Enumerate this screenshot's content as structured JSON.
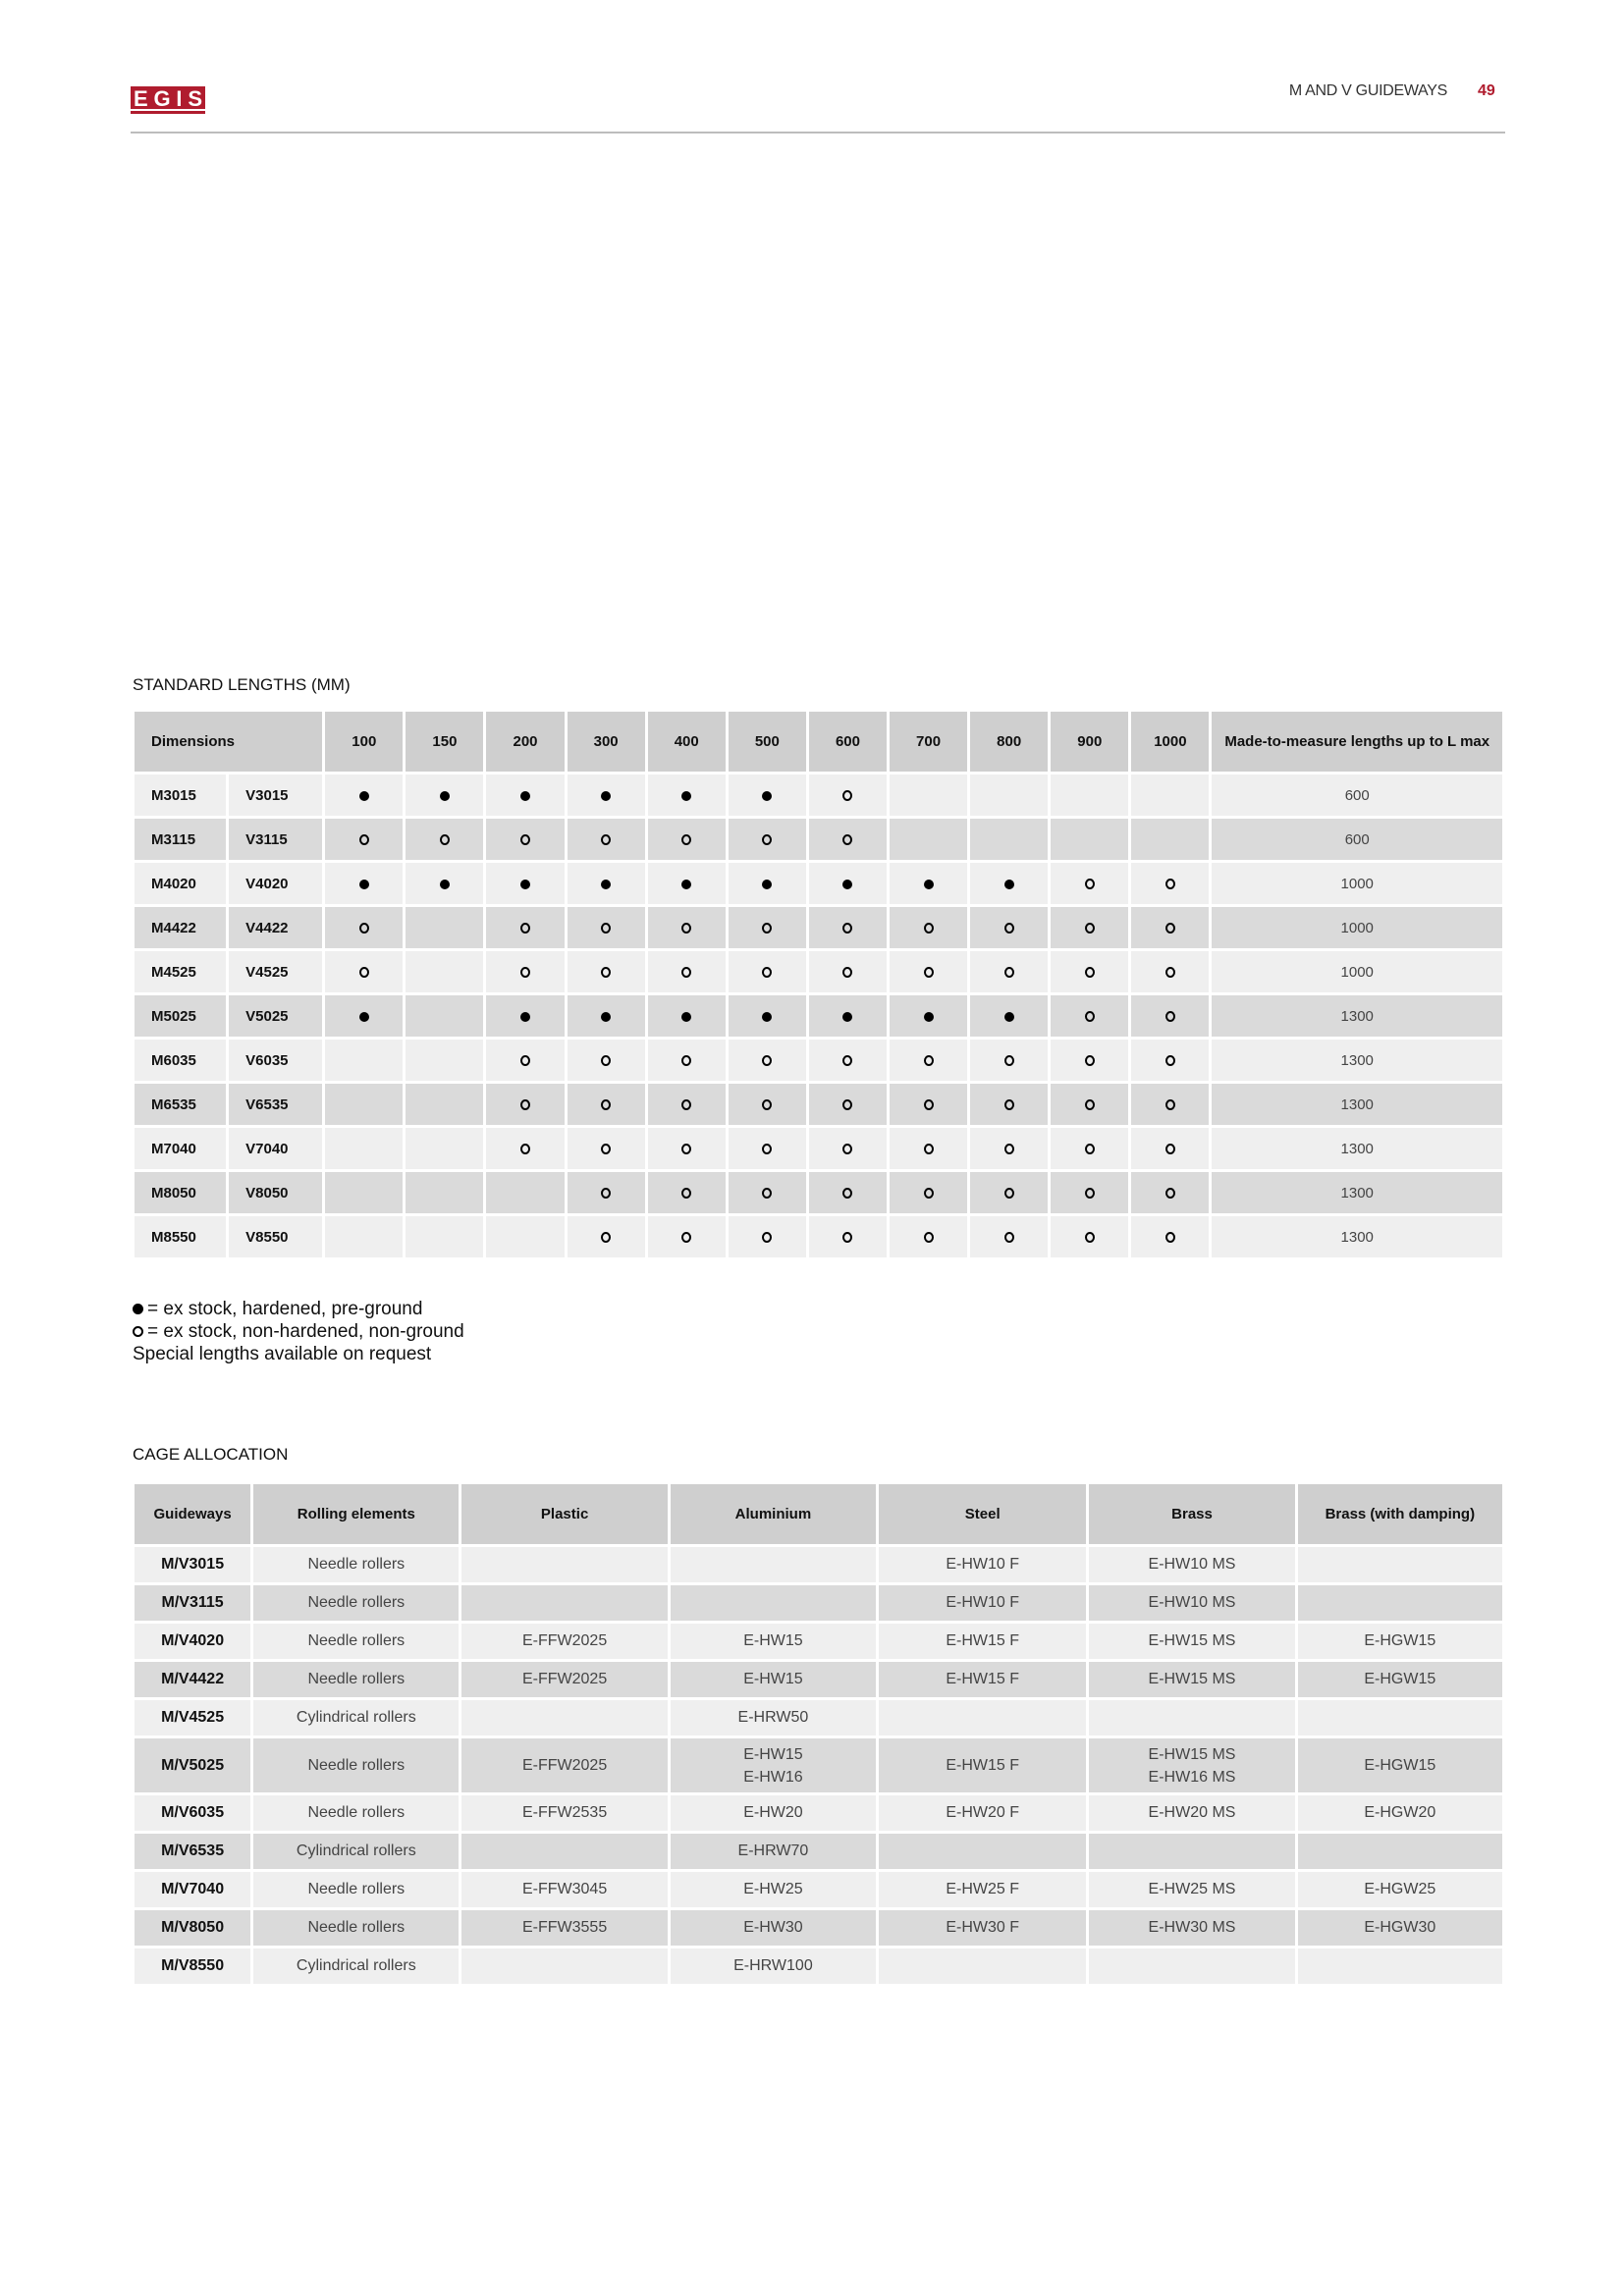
{
  "header": {
    "logo_text": "EGIS",
    "section_title": "M AND V GUIDEWAYS",
    "page_number": "49",
    "brand_color": "#b01c2e"
  },
  "standard_lengths": {
    "title": "STANDARD LENGTHS (MM)",
    "columns": {
      "dimensions": "Dimensions",
      "lengths": [
        "100",
        "150",
        "200",
        "300",
        "400",
        "500",
        "600",
        "700",
        "800",
        "900",
        "1000"
      ],
      "lmax": "Made-to-measure lengths up to L max"
    },
    "rows": [
      {
        "m": "M3015",
        "v": "V3015",
        "marks": [
          "filled",
          "filled",
          "filled",
          "filled",
          "filled",
          "filled",
          "open",
          "",
          "",
          "",
          ""
        ],
        "lmax": "600"
      },
      {
        "m": "M3115",
        "v": "V3115",
        "marks": [
          "open",
          "open",
          "open",
          "open",
          "open",
          "open",
          "open",
          "",
          "",
          "",
          ""
        ],
        "lmax": "600"
      },
      {
        "m": "M4020",
        "v": "V4020",
        "marks": [
          "filled",
          "filled",
          "filled",
          "filled",
          "filled",
          "filled",
          "filled",
          "filled",
          "filled",
          "open",
          "open"
        ],
        "lmax": "1000"
      },
      {
        "m": "M4422",
        "v": "V4422",
        "marks": [
          "open",
          "",
          "open",
          "open",
          "open",
          "open",
          "open",
          "open",
          "open",
          "open",
          "open"
        ],
        "lmax": "1000"
      },
      {
        "m": "M4525",
        "v": "V4525",
        "marks": [
          "open",
          "",
          "open",
          "open",
          "open",
          "open",
          "open",
          "open",
          "open",
          "open",
          "open"
        ],
        "lmax": "1000"
      },
      {
        "m": "M5025",
        "v": "V5025",
        "marks": [
          "filled",
          "",
          "filled",
          "filled",
          "filled",
          "filled",
          "filled",
          "filled",
          "filled",
          "open",
          "open"
        ],
        "lmax": "1300"
      },
      {
        "m": "M6035",
        "v": "V6035",
        "marks": [
          "",
          "",
          "open",
          "open",
          "open",
          "open",
          "open",
          "open",
          "open",
          "open",
          "open"
        ],
        "lmax": "1300"
      },
      {
        "m": "M6535",
        "v": "V6535",
        "marks": [
          "",
          "",
          "open",
          "open",
          "open",
          "open",
          "open",
          "open",
          "open",
          "open",
          "open"
        ],
        "lmax": "1300"
      },
      {
        "m": "M7040",
        "v": "V7040",
        "marks": [
          "",
          "",
          "open",
          "open",
          "open",
          "open",
          "open",
          "open",
          "open",
          "open",
          "open"
        ],
        "lmax": "1300"
      },
      {
        "m": "M8050",
        "v": "V8050",
        "marks": [
          "",
          "",
          "",
          "open",
          "open",
          "open",
          "open",
          "open",
          "open",
          "open",
          "open"
        ],
        "lmax": "1300"
      },
      {
        "m": "M8550",
        "v": "V8550",
        "marks": [
          "",
          "",
          "",
          "open",
          "open",
          "open",
          "open",
          "open",
          "open",
          "open",
          "open"
        ],
        "lmax": "1300"
      }
    ],
    "legend": {
      "filled": "= ex stock, hardened, pre-ground",
      "open": "= ex stock, non-hardened, non-ground",
      "note": "Special lengths available on request"
    }
  },
  "cage_allocation": {
    "title": "CAGE ALLOCATION",
    "columns": [
      "Guideways",
      "Rolling elements",
      "Plastic",
      "Aluminium",
      "Steel",
      "Brass",
      "Brass (with damping)"
    ],
    "rows": [
      [
        "M/V3015",
        "Needle rollers",
        "",
        "",
        "E-HW10 F",
        "E-HW10 MS",
        ""
      ],
      [
        "M/V3115",
        "Needle rollers",
        "",
        "",
        "E-HW10 F",
        "E-HW10 MS",
        ""
      ],
      [
        "M/V4020",
        "Needle rollers",
        "E-FFW2025",
        "E-HW15",
        "E-HW15 F",
        "E-HW15 MS",
        "E-HGW15"
      ],
      [
        "M/V4422",
        "Needle rollers",
        "E-FFW2025",
        "E-HW15",
        "E-HW15 F",
        "E-HW15 MS",
        "E-HGW15"
      ],
      [
        "M/V4525",
        "Cylindrical rollers",
        "",
        "E-HRW50",
        "",
        "",
        ""
      ],
      [
        "M/V5025",
        "Needle rollers",
        "E-FFW2025",
        "E-HW15\nE-HW16",
        "E-HW15 F",
        "E-HW15 MS\nE-HW16 MS",
        "E-HGW15"
      ],
      [
        "M/V6035",
        "Needle rollers",
        "E-FFW2535",
        "E-HW20",
        "E-HW20 F",
        "E-HW20 MS",
        "E-HGW20"
      ],
      [
        "M/V6535",
        "Cylindrical rollers",
        "",
        "E-HRW70",
        "",
        "",
        ""
      ],
      [
        "M/V7040",
        "Needle rollers",
        "E-FFW3045",
        "E-HW25",
        "E-HW25 F",
        "E-HW25 MS",
        "E-HGW25"
      ],
      [
        "M/V8050",
        "Needle rollers",
        "E-FFW3555",
        "E-HW30",
        "E-HW30 F",
        "E-HW30 MS",
        "E-HGW30"
      ],
      [
        "M/V8550",
        "Cylindrical rollers",
        "",
        "E-HRW100",
        "",
        "",
        ""
      ]
    ]
  }
}
